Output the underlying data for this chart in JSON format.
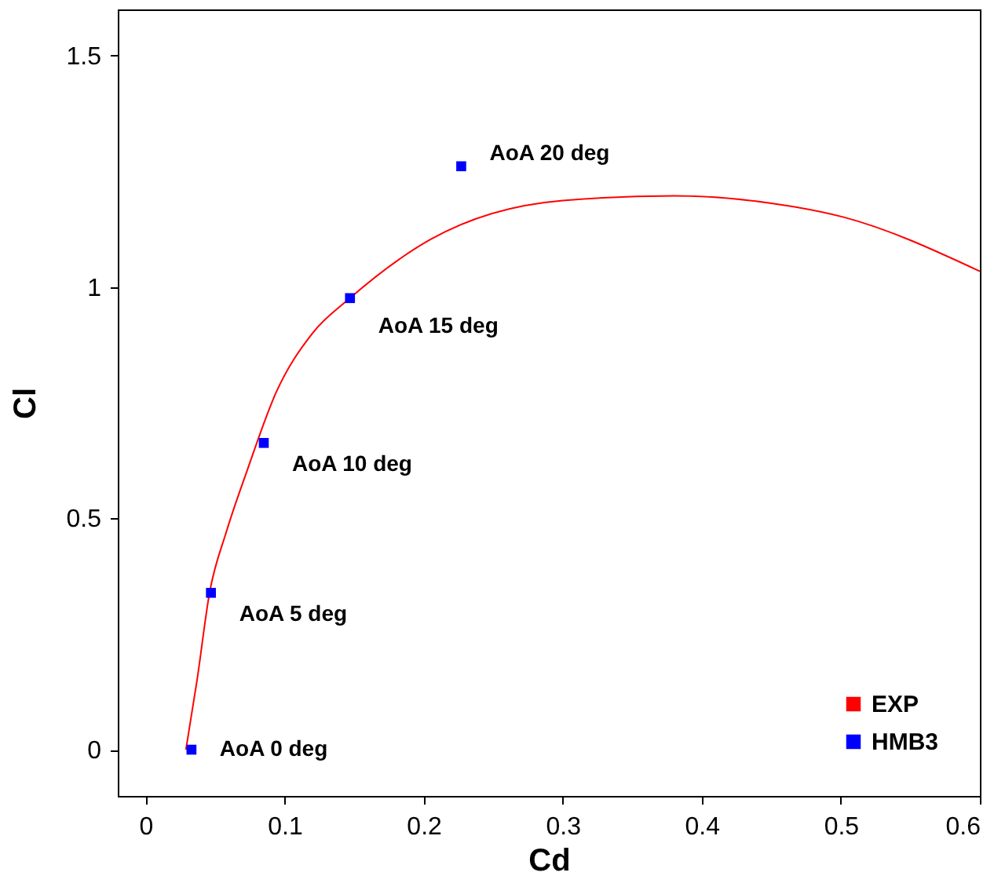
{
  "chart_data": {
    "type": "scatter",
    "xlabel": "Cd",
    "ylabel": "Cl",
    "xlim": [
      -0.02,
      0.6
    ],
    "xticks": [
      0,
      0.1,
      0.2,
      0.3,
      0.4,
      0.5,
      0.6
    ],
    "ylim": [
      -0.1,
      1.6
    ],
    "yticks": [
      0,
      0.5,
      1,
      1.5
    ],
    "grid": false,
    "legend": "bottom right",
    "series": [
      {
        "name": "EXP",
        "type": "line",
        "color": "#ff0000",
        "marker": "none",
        "x": [
          0.029,
          0.037,
          0.046,
          0.058,
          0.073,
          0.094,
          0.12,
          0.147,
          0.205,
          0.3,
          0.38,
          0.45,
          0.502,
          0.6
        ],
        "values": [
          0,
          0.15,
          0.339,
          0.47,
          0.603,
          0.773,
          0.9,
          0.976,
          1.103,
          1.187,
          1.197,
          1.181,
          1.151,
          1.034
        ]
      },
      {
        "name": "HMB3",
        "type": "scatter",
        "color": "#0000ff",
        "marker": "square",
        "x": [
          0.033,
          0.047,
          0.085,
          0.147,
          0.227
        ],
        "values": [
          0,
          0.339,
          0.663,
          0.976,
          1.261
        ]
      }
    ],
    "annotations": [
      {
        "text": "AoA 0 deg",
        "x": 0.033,
        "y": 0
      },
      {
        "text": "AoA 5 deg",
        "x": 0.047,
        "y": 0.339
      },
      {
        "text": "AoA 10 deg",
        "x": 0.085,
        "y": 0.663
      },
      {
        "text": "AoA 15 deg",
        "x": 0.147,
        "y": 0.976
      },
      {
        "text": "AoA 20 deg",
        "x": 0.227,
        "y": 1.261
      }
    ]
  }
}
